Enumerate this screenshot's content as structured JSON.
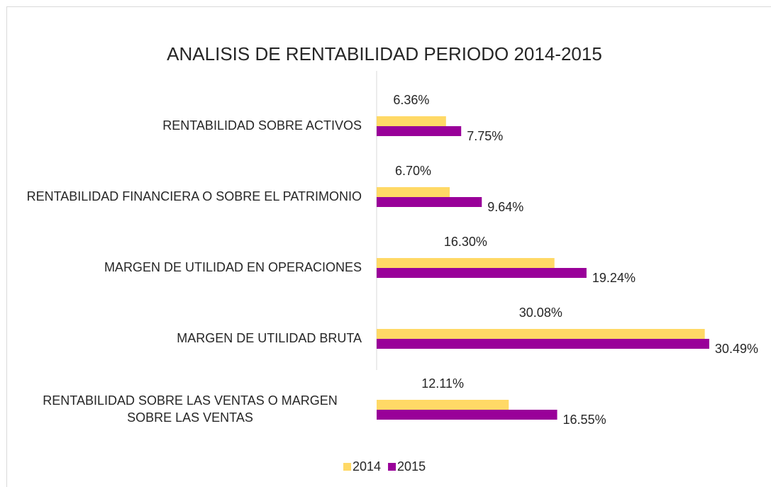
{
  "chart_data": {
    "type": "bar",
    "orientation": "horizontal",
    "title": "ANALISIS DE RENTABILIDAD PERIODO 2014-2015",
    "categories": [
      "RENTABILIDAD SOBRE ACTIVOS",
      "RENTABILIDAD FINANCIERA O SOBRE EL PATRIMONIO",
      "MARGEN DE UTILIDAD EN OPERACIONES",
      "MARGEN DE UTILIDAD BRUTA",
      "RENTABILIDAD SOBRE LAS VENTAS O MARGEN SOBRE LAS VENTAS"
    ],
    "series": [
      {
        "name": "2014",
        "color": "#ffd966",
        "values": [
          6.36,
          6.7,
          16.3,
          30.08,
          12.11
        ],
        "value_labels": [
          "6.36%",
          "6.70%",
          "16.30%",
          "30.08%",
          "12.11%"
        ]
      },
      {
        "name": "2015",
        "color": "#990099",
        "values": [
          7.75,
          9.64,
          19.24,
          30.49,
          16.55
        ],
        "value_labels": [
          "7.75%",
          "9.64%",
          "19.24%",
          "30.49%",
          "16.55%"
        ]
      }
    ],
    "xlim": [
      0,
      35
    ],
    "legend": "bottom"
  }
}
